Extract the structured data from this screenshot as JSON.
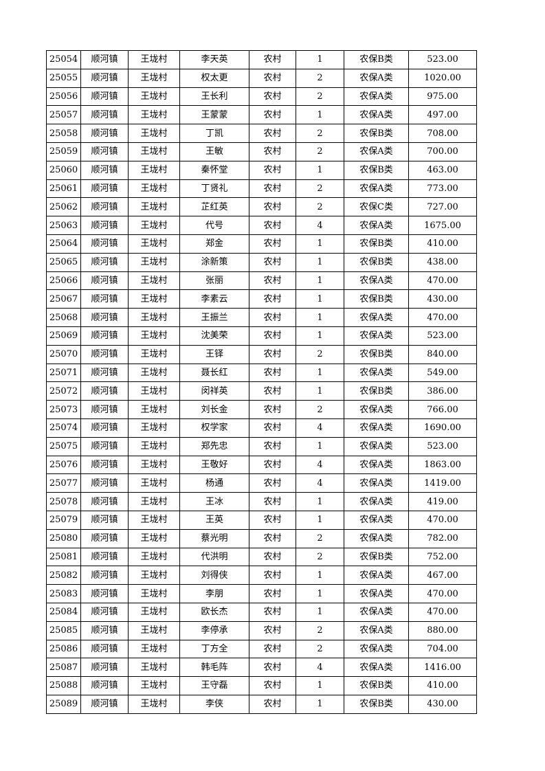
{
  "table": {
    "rows": [
      [
        "25054",
        "顺河镇",
        "王垅村",
        "李天英",
        "农村",
        "1",
        "农保B类",
        "523.00"
      ],
      [
        "25055",
        "顺河镇",
        "王垅村",
        "权太更",
        "农村",
        "2",
        "农保A类",
        "1020.00"
      ],
      [
        "25056",
        "顺河镇",
        "王垅村",
        "王长利",
        "农村",
        "2",
        "农保A类",
        "975.00"
      ],
      [
        "25057",
        "顺河镇",
        "王垅村",
        "王蒙蒙",
        "农村",
        "1",
        "农保A类",
        "497.00"
      ],
      [
        "25058",
        "顺河镇",
        "王垅村",
        "丁凯",
        "农村",
        "2",
        "农保B类",
        "708.00"
      ],
      [
        "25059",
        "顺河镇",
        "王垅村",
        "王敏",
        "农村",
        "2",
        "农保A类",
        "700.00"
      ],
      [
        "25060",
        "顺河镇",
        "王垅村",
        "秦怀堂",
        "农村",
        "1",
        "农保B类",
        "463.00"
      ],
      [
        "25061",
        "顺河镇",
        "王垅村",
        "丁贤礼",
        "农村",
        "2",
        "农保A类",
        "773.00"
      ],
      [
        "25062",
        "顺河镇",
        "王垅村",
        "芷红英",
        "农村",
        "2",
        "农保C类",
        "727.00"
      ],
      [
        "25063",
        "顺河镇",
        "王垅村",
        "代号",
        "农村",
        "4",
        "农保A类",
        "1675.00"
      ],
      [
        "25064",
        "顺河镇",
        "王垅村",
        "郑金",
        "农村",
        "1",
        "农保B类",
        "410.00"
      ],
      [
        "25065",
        "顺河镇",
        "王垅村",
        "涂新策",
        "农村",
        "1",
        "农保B类",
        "438.00"
      ],
      [
        "25066",
        "顺河镇",
        "王垅村",
        "张丽",
        "农村",
        "1",
        "农保A类",
        "470.00"
      ],
      [
        "25067",
        "顺河镇",
        "王垅村",
        "李素云",
        "农村",
        "1",
        "农保B类",
        "430.00"
      ],
      [
        "25068",
        "顺河镇",
        "王垅村",
        "王振兰",
        "农村",
        "1",
        "农保A类",
        "470.00"
      ],
      [
        "25069",
        "顺河镇",
        "王垅村",
        "沈美荣",
        "农村",
        "1",
        "农保A类",
        "523.00"
      ],
      [
        "25070",
        "顺河镇",
        "王垅村",
        "王铎",
        "农村",
        "2",
        "农保B类",
        "840.00"
      ],
      [
        "25071",
        "顺河镇",
        "王垅村",
        "聂长红",
        "农村",
        "1",
        "农保A类",
        "549.00"
      ],
      [
        "25072",
        "顺河镇",
        "王垅村",
        "闵祥英",
        "农村",
        "1",
        "农保B类",
        "386.00"
      ],
      [
        "25073",
        "顺河镇",
        "王垅村",
        "刘长金",
        "农村",
        "2",
        "农保A类",
        "766.00"
      ],
      [
        "25074",
        "顺河镇",
        "王垅村",
        "权学家",
        "农村",
        "4",
        "农保A类",
        "1690.00"
      ],
      [
        "25075",
        "顺河镇",
        "王垅村",
        "郑先忠",
        "农村",
        "1",
        "农保A类",
        "523.00"
      ],
      [
        "25076",
        "顺河镇",
        "王垅村",
        "王敬好",
        "农村",
        "4",
        "农保A类",
        "1863.00"
      ],
      [
        "25077",
        "顺河镇",
        "王垅村",
        "杨通",
        "农村",
        "4",
        "农保A类",
        "1419.00"
      ],
      [
        "25078",
        "顺河镇",
        "王垅村",
        "王冰",
        "农村",
        "1",
        "农保A类",
        "419.00"
      ],
      [
        "25079",
        "顺河镇",
        "王垅村",
        "王英",
        "农村",
        "1",
        "农保A类",
        "470.00"
      ],
      [
        "25080",
        "顺河镇",
        "王垅村",
        "蔡光明",
        "农村",
        "2",
        "农保A类",
        "782.00"
      ],
      [
        "25081",
        "顺河镇",
        "王垅村",
        "代洪明",
        "农村",
        "2",
        "农保B类",
        "752.00"
      ],
      [
        "25082",
        "顺河镇",
        "王垅村",
        "刘得侠",
        "农村",
        "1",
        "农保A类",
        "467.00"
      ],
      [
        "25083",
        "顺河镇",
        "王垅村",
        "李朋",
        "农村",
        "1",
        "农保A类",
        "470.00"
      ],
      [
        "25084",
        "顺河镇",
        "王垅村",
        "欧长杰",
        "农村",
        "1",
        "农保A类",
        "470.00"
      ],
      [
        "25085",
        "顺河镇",
        "王垅村",
        "李停承",
        "农村",
        "2",
        "农保A类",
        "880.00"
      ],
      [
        "25086",
        "顺河镇",
        "王垅村",
        "丁方全",
        "农村",
        "2",
        "农保A类",
        "704.00"
      ],
      [
        "25087",
        "顺河镇",
        "王垅村",
        "韩毛阵",
        "农村",
        "4",
        "农保A类",
        "1416.00"
      ],
      [
        "25088",
        "顺河镇",
        "王垅村",
        "王守磊",
        "农村",
        "1",
        "农保B类",
        "410.00"
      ],
      [
        "25089",
        "顺河镇",
        "王垅村",
        "李侠",
        "农村",
        "1",
        "农保B类",
        "430.00"
      ]
    ]
  }
}
